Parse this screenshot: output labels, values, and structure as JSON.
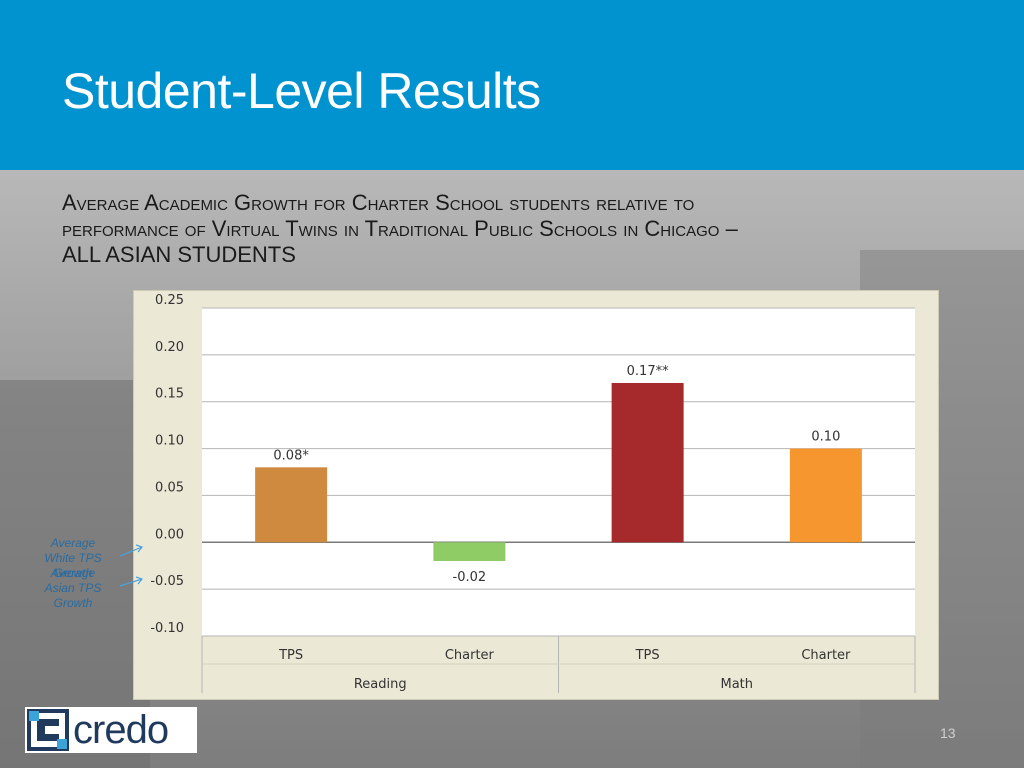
{
  "slide": {
    "title": "Student-Level Results",
    "subtitle_line1": "Average Academic Growth for Charter School students relative to",
    "subtitle_line2": "performance of Virtual Twins in Traditional Public Schools in Chicago –",
    "subtitle_line3": "ALL ASIAN STUDENTS",
    "page_number": "13",
    "logo_text": "credo"
  },
  "annotations": {
    "white_tps": [
      "Average",
      "White TPS",
      "Growth"
    ],
    "asian_tps": [
      "Average",
      "Asian TPS",
      "Growth"
    ]
  },
  "colors": {
    "header": "#0093d0",
    "panel": "#ece8d6",
    "plot": "#ffffff"
  },
  "chart_data": {
    "type": "bar",
    "categories": [
      "TPS",
      "Charter",
      "TPS",
      "Charter"
    ],
    "groups": [
      {
        "label": "Reading",
        "categories": [
          "TPS",
          "Charter"
        ]
      },
      {
        "label": "Math",
        "categories": [
          "TPS",
          "Charter"
        ]
      }
    ],
    "values": [
      0.08,
      -0.02,
      0.17,
      0.1
    ],
    "data_labels": [
      "0.08*",
      "-0.02",
      "0.17**",
      "0.10"
    ],
    "bar_colors": [
      "#d08a3f",
      "#8fcc66",
      "#a6292b",
      "#f5962e"
    ],
    "ylim": [
      -0.1,
      0.25
    ],
    "yticks": [
      0.25,
      0.2,
      0.15,
      0.1,
      0.05,
      0.0,
      -0.05,
      -0.1
    ],
    "ytick_labels": [
      "0.25",
      "0.20",
      "0.15",
      "0.10",
      "0.05",
      "0.00",
      "-0.05",
      "-0.10"
    ],
    "grid": true,
    "title": "",
    "xlabel": "",
    "ylabel": ""
  }
}
